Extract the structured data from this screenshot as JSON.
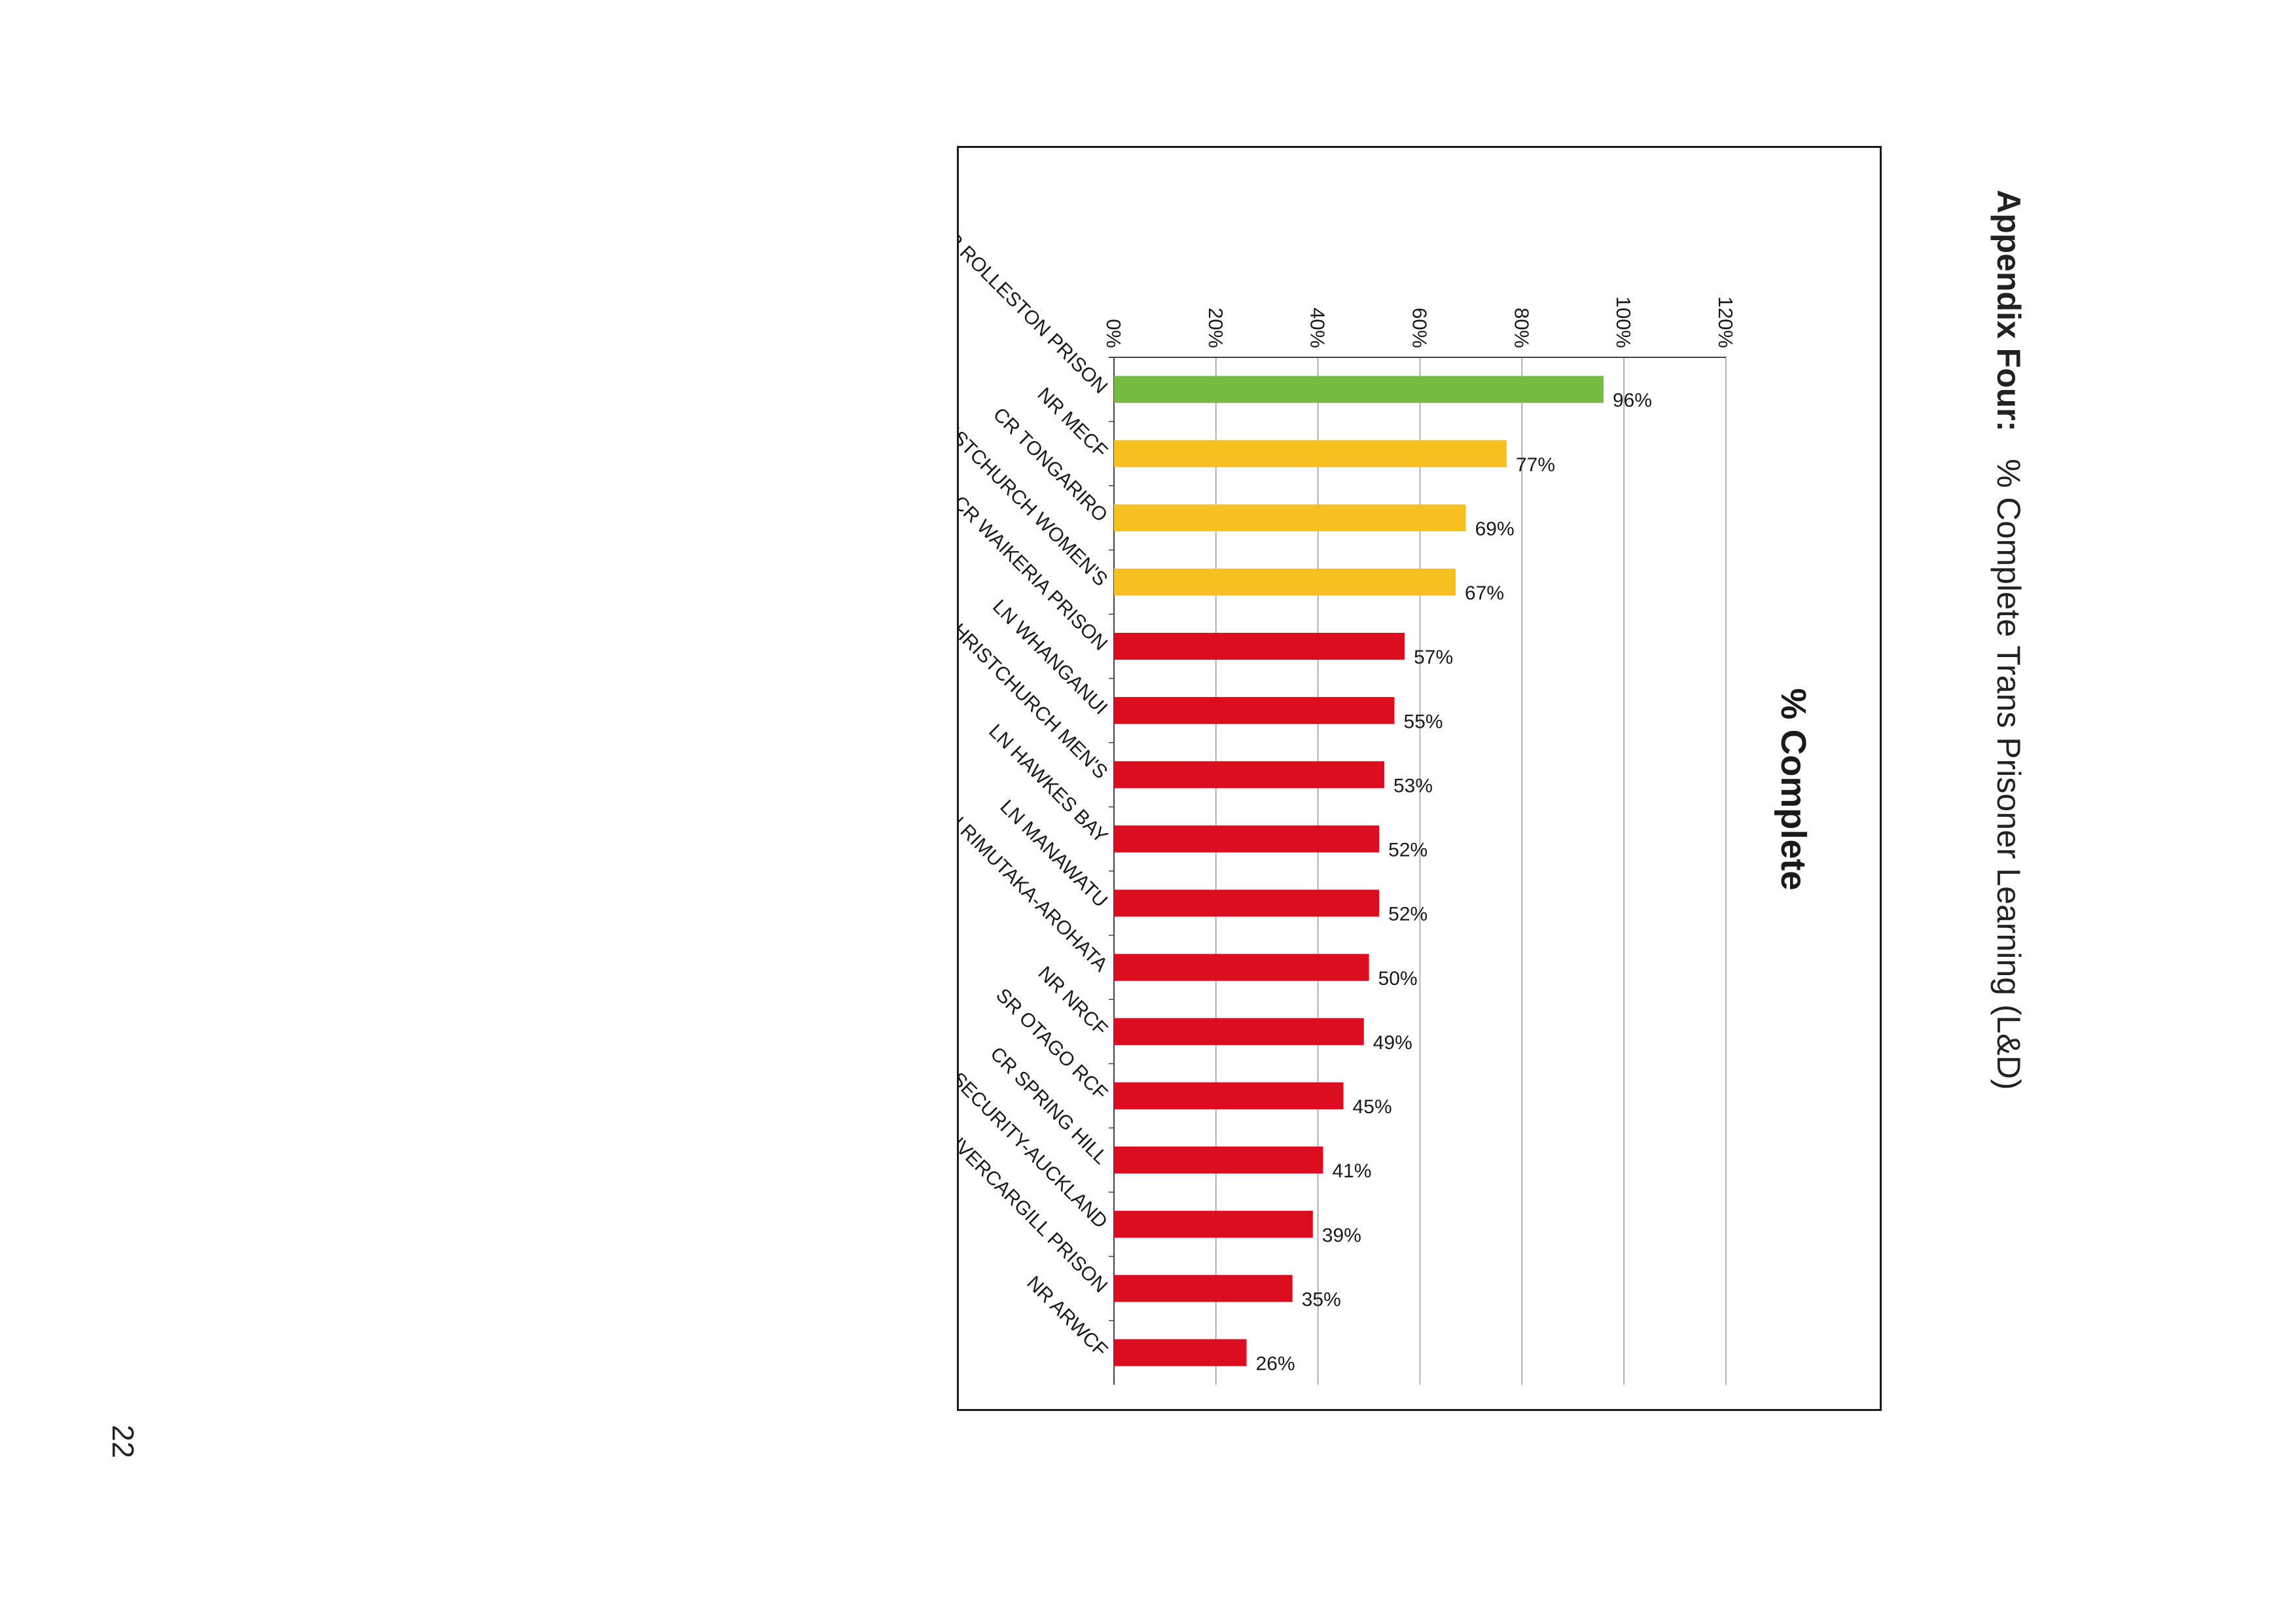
{
  "document": {
    "heading_label": "Appendix Four:",
    "heading_text": "% Complete Trans Prisoner Learning (L&D)",
    "page_number": "22"
  },
  "colors": {
    "green": "#76bc43",
    "amber": "#f5c020",
    "red": "#dc0d1e",
    "gridline": "#9a9a9a",
    "axis": "#444444"
  },
  "chart_data": {
    "type": "bar",
    "orientation": "vertical-columns",
    "title": "% Complete",
    "xlabel": "",
    "ylabel": "",
    "ylim": [
      0,
      120
    ],
    "yticks": [
      "0%",
      "20%",
      "40%",
      "60%",
      "80%",
      "100%",
      "120%"
    ],
    "grid": true,
    "legend": "none",
    "categories": [
      "SR ROLLESTON PRISON",
      "NR MECF",
      "CR TONGARIRO",
      "SR CHRISTCHURCH WOMEN'S",
      "CR WAIKERIA PRISON",
      "LN WHANGANUI",
      "SR CHRISTCHURCH MEN'S",
      "LN HAWKES BAY",
      "LN MANAWATU",
      "LN RIMUTAKA-AROHATA",
      "NR NRCF",
      "SR OTAGO RCF",
      "CR SPRING HILL",
      "NR NZ MAXIMUM SECURITY-AUCKLAND",
      "SR INVERCARGILL PRISON",
      "NR ARWCF"
    ],
    "values": [
      96,
      77,
      69,
      67,
      57,
      55,
      53,
      52,
      52,
      50,
      49,
      45,
      41,
      39,
      35,
      26
    ],
    "value_labels": [
      "96%",
      "77%",
      "69%",
      "67%",
      "57%",
      "55%",
      "53%",
      "52%",
      "52%",
      "50%",
      "49%",
      "45%",
      "41%",
      "39%",
      "35%",
      "26%"
    ],
    "bar_colors": [
      "green",
      "amber",
      "amber",
      "amber",
      "red",
      "red",
      "red",
      "red",
      "red",
      "red",
      "red",
      "red",
      "red",
      "red",
      "red",
      "red"
    ]
  }
}
